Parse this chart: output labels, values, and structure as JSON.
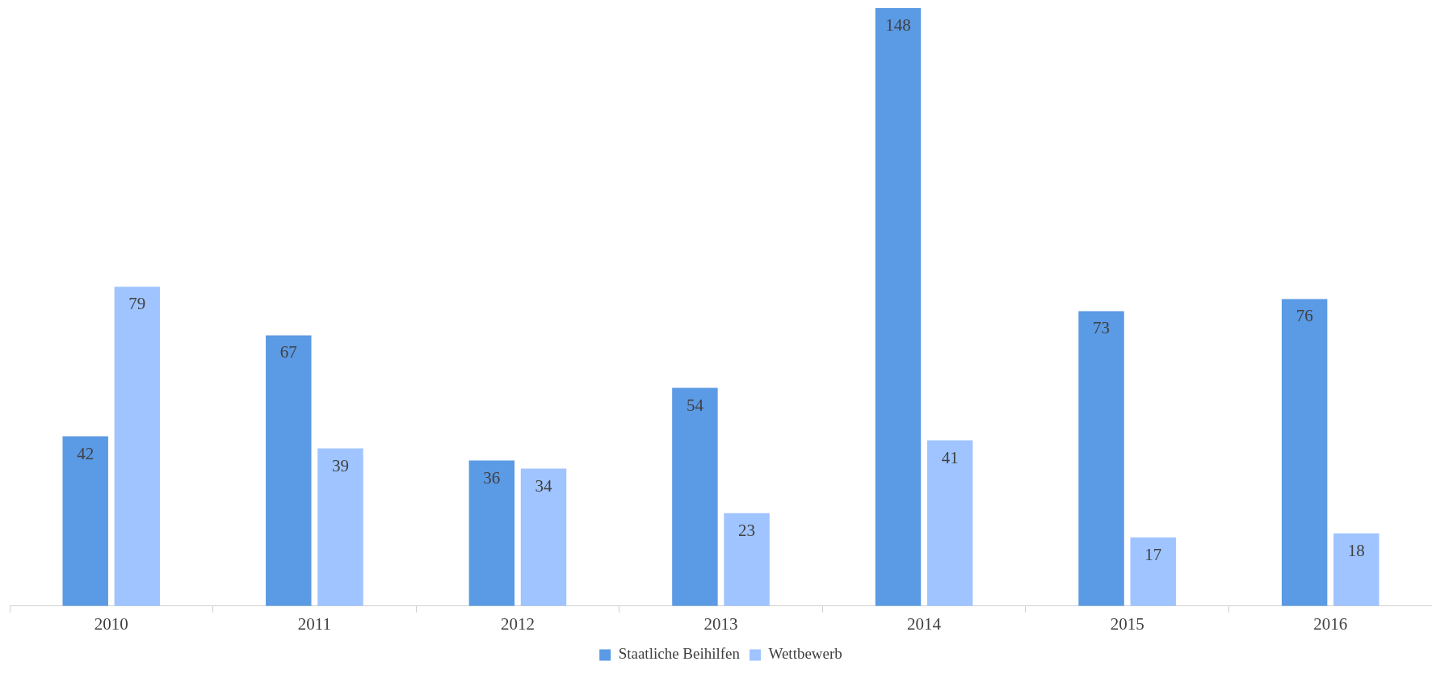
{
  "chart_data": {
    "type": "bar",
    "categories": [
      "2010",
      "2011",
      "2012",
      "2013",
      "2014",
      "2015",
      "2016"
    ],
    "series": [
      {
        "name": "Staatliche Beihilfen",
        "color": "#5b9ae4",
        "values": [
          42,
          67,
          36,
          54,
          148,
          73,
          76
        ]
      },
      {
        "name": "Wettbewerb",
        "color": "#9fc4ff",
        "values": [
          79,
          39,
          34,
          23,
          41,
          17,
          18
        ]
      }
    ],
    "data_labels": true,
    "legend": "bottom",
    "grid": false
  }
}
